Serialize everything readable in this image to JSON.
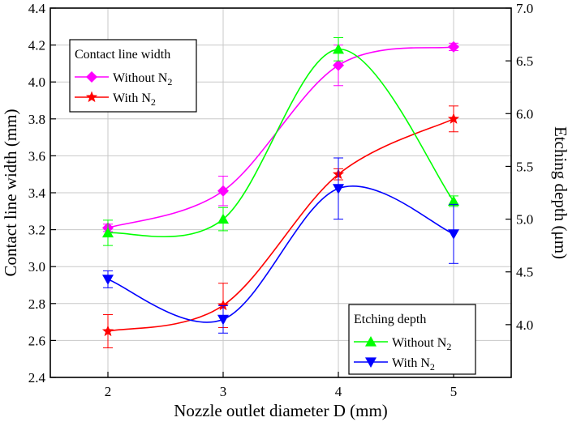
{
  "chart_data": {
    "type": "line",
    "x": [
      2,
      3,
      4,
      5
    ],
    "xlabel": "Nozzle outlet diameter D (mm)",
    "xlim": [
      1.5,
      5.5
    ],
    "xticks": [
      "2",
      "3",
      "4",
      "5"
    ],
    "ylabel_left": "Contact line width (mm)",
    "ylim_left": [
      2.4,
      4.4
    ],
    "yticks_left": [
      "2.4",
      "2.6",
      "2.8",
      "3.0",
      "3.2",
      "3.4",
      "3.6",
      "3.8",
      "4.0",
      "4.2",
      "4.4"
    ],
    "ylabel_right": "Etching depth (μm)",
    "ylim_right": [
      3.5,
      7.0
    ],
    "yticks_right": [
      "4.0",
      "4.5",
      "5.0",
      "5.5",
      "6.0",
      "6.5",
      "7.0"
    ],
    "grid": true,
    "series": [
      {
        "name": "Without N2",
        "group": "Contact line width",
        "axis": "left",
        "color": "#ff00ff",
        "marker": "diamond",
        "values": [
          3.21,
          3.41,
          4.09,
          4.19
        ],
        "errors": [
          0.02,
          0.08,
          0.11,
          0.02
        ]
      },
      {
        "name": "With N2",
        "group": "Contact line width",
        "axis": "left",
        "color": "#ff0000",
        "marker": "star",
        "values": [
          2.65,
          2.79,
          3.5,
          3.8
        ],
        "errors": [
          0.09,
          0.12,
          0.03,
          0.07
        ]
      },
      {
        "name": "Without N2",
        "group": "Etching depth",
        "axis": "right",
        "color": "#00ff00",
        "marker": "triangle-up",
        "values": [
          4.87,
          5.0,
          6.61,
          5.17
        ],
        "errors": [
          0.12,
          0.11,
          0.11,
          0.05
        ]
      },
      {
        "name": "With N2",
        "group": "Etching depth",
        "axis": "right",
        "color": "#0000ff",
        "marker": "triangle-down",
        "values": [
          4.43,
          4.05,
          5.29,
          4.86
        ],
        "errors": [
          0.08,
          0.13,
          0.29,
          0.28
        ]
      }
    ],
    "legends": [
      {
        "title": "Contact line width",
        "position": "top-left",
        "entries": [
          {
            "base": "Without N",
            "sub": "2",
            "color": "#ff00ff",
            "marker": "diamond"
          },
          {
            "base": "With N",
            "sub": "2",
            "color": "#ff0000",
            "marker": "star"
          }
        ]
      },
      {
        "title": "Etching depth",
        "position": "bottom-right",
        "entries": [
          {
            "base": "Without N",
            "sub": "2",
            "color": "#00ff00",
            "marker": "triangle-up"
          },
          {
            "base": "With N",
            "sub": "2",
            "color": "#0000ff",
            "marker": "triangle-down"
          }
        ]
      }
    ]
  }
}
